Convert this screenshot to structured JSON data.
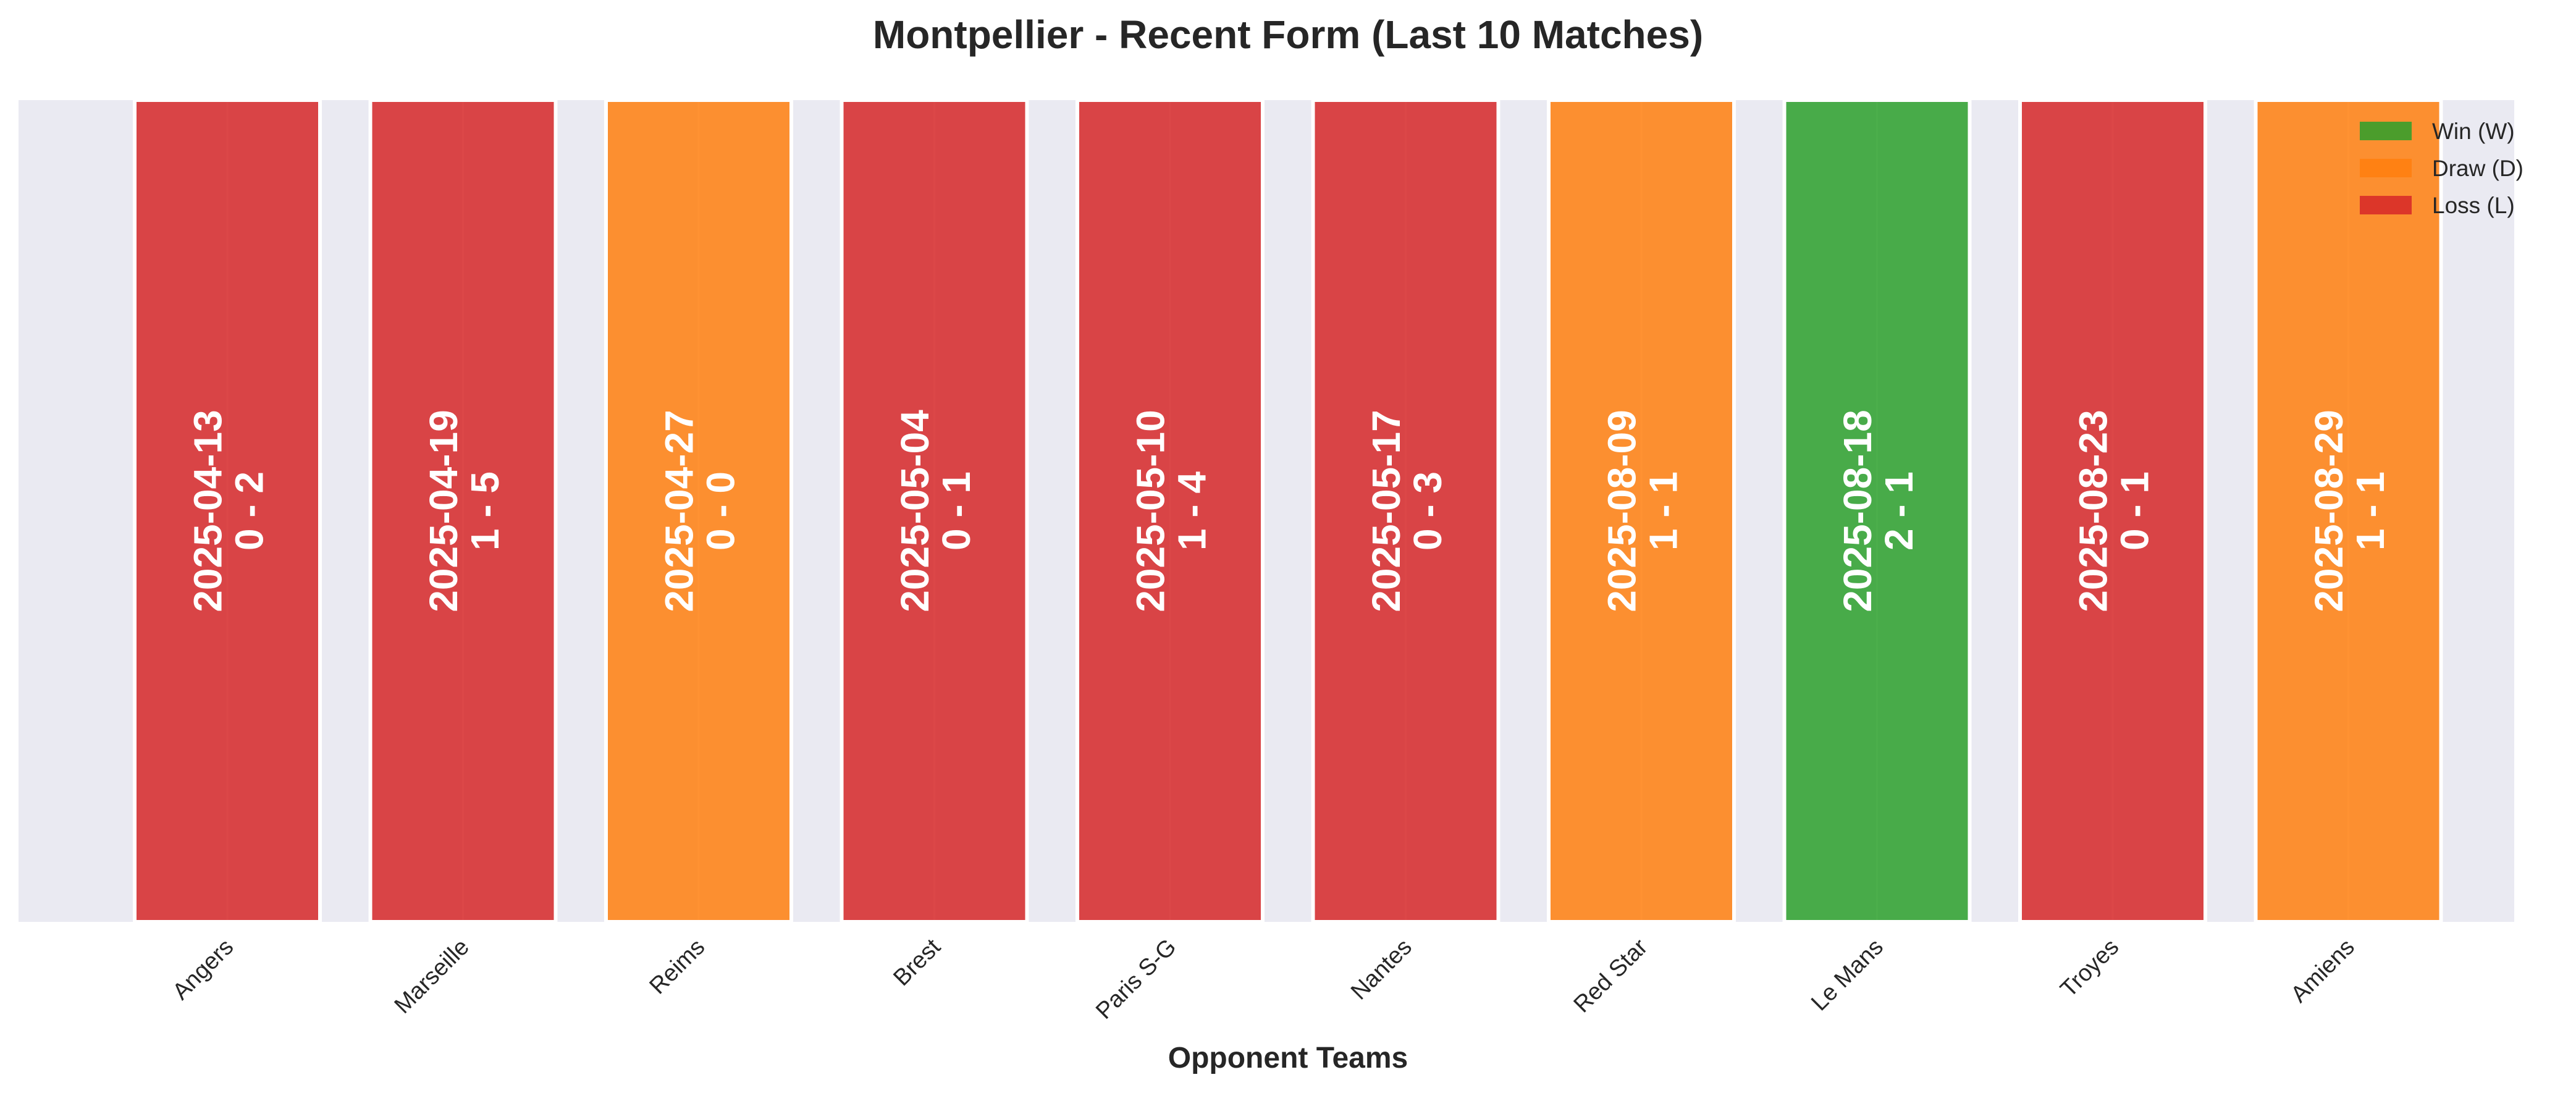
{
  "chart_data": {
    "type": "bar",
    "title": "Montpellier - Recent Form (Last 10 Matches)",
    "xlabel": "Opponent Teams",
    "ylabel": "",
    "ylim": [
      0,
      1
    ],
    "grid": true,
    "legend_position": "top-right",
    "categories": [
      "Angers",
      "Marseille",
      "Reims",
      "Brest",
      "Paris S-G",
      "Nantes",
      "Red Star",
      "Le Mans",
      "Troyes",
      "Amiens"
    ],
    "values": [
      1,
      1,
      1,
      1,
      1,
      1,
      1,
      1,
      1,
      1
    ],
    "results": [
      "L",
      "L",
      "D",
      "L",
      "L",
      "L",
      "D",
      "W",
      "L",
      "D"
    ],
    "dates": [
      "2025-04-13",
      "2025-04-19",
      "2025-04-27",
      "2025-05-04",
      "2025-05-10",
      "2025-05-17",
      "2025-08-09",
      "2025-08-18",
      "2025-08-23",
      "2025-08-29"
    ],
    "scores": [
      "0 - 2",
      "1 - 5",
      "0 - 0",
      "0 - 1",
      "1 - 4",
      "0 - 3",
      "1 - 1",
      "2 - 1",
      "0 - 1",
      "1 - 1"
    ],
    "legend": [
      {
        "key": "W",
        "label": "Win (W)",
        "color": "#2ca02c"
      },
      {
        "key": "D",
        "label": "Draw (D)",
        "color": "#ff7f0e"
      },
      {
        "key": "L",
        "label": "Loss (L)",
        "color": "#d62728"
      }
    ],
    "colors": {
      "W": "#2ca02c",
      "D": "#ff7f0e",
      "L": "#d62728",
      "plot_background": "#eaeaf2",
      "grid": "#ffffff"
    }
  }
}
